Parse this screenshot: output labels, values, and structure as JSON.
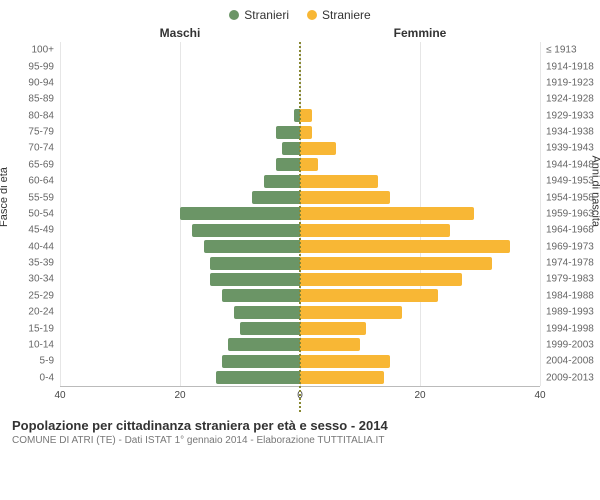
{
  "legend": {
    "male": {
      "label": "Stranieri",
      "color": "#6b9566"
    },
    "female": {
      "label": "Straniere",
      "color": "#f8b735"
    }
  },
  "header": {
    "left": "Maschi",
    "right": "Femmine"
  },
  "axes": {
    "left_title": "Fasce di età",
    "right_title": "Anni di nascita",
    "xmax": 40,
    "xticks_left": [
      40,
      20,
      0
    ],
    "xticks_right": [
      0,
      20,
      40
    ],
    "grid_positions": [
      -40,
      -20,
      0,
      20,
      40
    ],
    "grid_color": "#e6e6e6",
    "center_line_color": "#888833"
  },
  "chart": {
    "type": "population-pyramid",
    "background_color": "#ffffff",
    "bar_gap_ratio": 0.2,
    "age_groups": [
      {
        "age": "100+",
        "birth": "≤ 1913",
        "m": 0,
        "f": 0
      },
      {
        "age": "95-99",
        "birth": "1914-1918",
        "m": 0,
        "f": 0
      },
      {
        "age": "90-94",
        "birth": "1919-1923",
        "m": 0,
        "f": 0
      },
      {
        "age": "85-89",
        "birth": "1924-1928",
        "m": 0,
        "f": 0
      },
      {
        "age": "80-84",
        "birth": "1929-1933",
        "m": 1,
        "f": 2
      },
      {
        "age": "75-79",
        "birth": "1934-1938",
        "m": 4,
        "f": 2
      },
      {
        "age": "70-74",
        "birth": "1939-1943",
        "m": 3,
        "f": 6
      },
      {
        "age": "65-69",
        "birth": "1944-1948",
        "m": 4,
        "f": 3
      },
      {
        "age": "60-64",
        "birth": "1949-1953",
        "m": 6,
        "f": 13
      },
      {
        "age": "55-59",
        "birth": "1954-1958",
        "m": 8,
        "f": 15
      },
      {
        "age": "50-54",
        "birth": "1959-1963",
        "m": 20,
        "f": 29
      },
      {
        "age": "45-49",
        "birth": "1964-1968",
        "m": 18,
        "f": 25
      },
      {
        "age": "40-44",
        "birth": "1969-1973",
        "m": 16,
        "f": 35
      },
      {
        "age": "35-39",
        "birth": "1974-1978",
        "m": 15,
        "f": 32
      },
      {
        "age": "30-34",
        "birth": "1979-1983",
        "m": 15,
        "f": 27
      },
      {
        "age": "25-29",
        "birth": "1984-1988",
        "m": 13,
        "f": 23
      },
      {
        "age": "20-24",
        "birth": "1989-1993",
        "m": 11,
        "f": 17
      },
      {
        "age": "15-19",
        "birth": "1994-1998",
        "m": 10,
        "f": 11
      },
      {
        "age": "10-14",
        "birth": "1999-2003",
        "m": 12,
        "f": 10
      },
      {
        "age": "5-9",
        "birth": "2004-2008",
        "m": 13,
        "f": 15
      },
      {
        "age": "0-4",
        "birth": "2009-2013",
        "m": 14,
        "f": 14
      }
    ]
  },
  "caption": {
    "title": "Popolazione per cittadinanza straniera per età e sesso - 2014",
    "subtitle": "COMUNE DI ATRI (TE) - Dati ISTAT 1° gennaio 2014 - Elaborazione TUTTITALIA.IT"
  }
}
